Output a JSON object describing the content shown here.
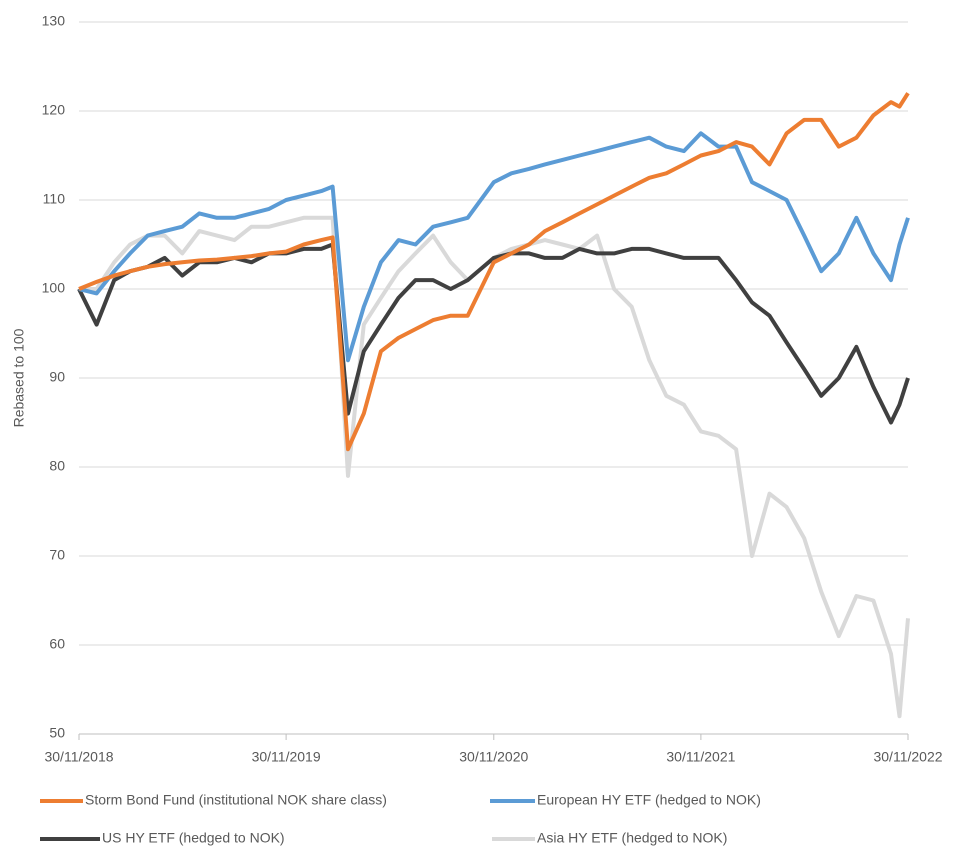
{
  "chart_data": {
    "type": "line",
    "y_label": "Rebased to 100",
    "x": [
      "2018-11-30",
      "2018-12-31",
      "2019-01-31",
      "2019-02-28",
      "2019-03-31",
      "2019-04-30",
      "2019-05-31",
      "2019-06-30",
      "2019-07-31",
      "2019-08-31",
      "2019-09-30",
      "2019-10-31",
      "2019-11-30",
      "2019-12-31",
      "2020-01-31",
      "2020-02-20",
      "2020-03-18",
      "2020-04-15",
      "2020-05-15",
      "2020-06-15",
      "2020-07-15",
      "2020-08-15",
      "2020-09-15",
      "2020-10-15",
      "2020-11-30",
      "2020-12-31",
      "2021-01-31",
      "2021-02-28",
      "2021-03-31",
      "2021-04-30",
      "2021-05-31",
      "2021-06-30",
      "2021-07-31",
      "2021-08-31",
      "2021-09-30",
      "2021-10-31",
      "2021-11-30",
      "2021-12-31",
      "2022-01-31",
      "2022-02-28",
      "2022-03-31",
      "2022-04-30",
      "2022-05-31",
      "2022-06-30",
      "2022-07-31",
      "2022-08-31",
      "2022-09-30",
      "2022-10-31",
      "2022-11-15",
      "2022-11-30"
    ],
    "series": [
      {
        "name": "Storm Bond Fund (institutional NOK share class)",
        "color": "#ed7d31",
        "values": [
          100,
          100.8,
          101.5,
          102,
          102.5,
          102.8,
          103,
          103.2,
          103.3,
          103.5,
          103.7,
          104,
          104.2,
          105,
          105.5,
          105.8,
          82,
          86,
          93,
          94.5,
          95.5,
          96.5,
          97,
          97,
          103,
          104,
          105,
          106.5,
          107.5,
          108.5,
          109.5,
          110.5,
          111.5,
          112.5,
          113,
          114,
          115,
          115.5,
          116.5,
          116,
          114,
          117.5,
          119,
          119,
          116,
          117,
          119.5,
          121,
          120.5,
          122
        ]
      },
      {
        "name": "European HY ETF (hedged to NOK)",
        "color": "#5b9bd5",
        "values": [
          100,
          99.5,
          102,
          104,
          106,
          106.5,
          107,
          108.5,
          108,
          108,
          108.5,
          109,
          110,
          110.5,
          111,
          111.5,
          92,
          98,
          103,
          105.5,
          105,
          107,
          107.5,
          108,
          112,
          113,
          113.5,
          114,
          114.5,
          115,
          115.5,
          116,
          116.5,
          117,
          116,
          115.5,
          117.5,
          116,
          116,
          112,
          111,
          110,
          106,
          102,
          104,
          108,
          104,
          101,
          105,
          108
        ]
      },
      {
        "name": "US HY ETF (hedged to NOK)",
        "color": "#404040",
        "values": [
          100,
          96,
          101,
          102,
          102.5,
          103.5,
          101.5,
          103,
          103,
          103.5,
          103,
          104,
          104,
          104.5,
          104.5,
          105,
          86,
          93,
          96,
          99,
          101,
          101,
          100,
          101,
          103.5,
          104,
          104,
          103.5,
          103.5,
          104.5,
          104,
          104,
          104.5,
          104.5,
          104,
          103.5,
          103.5,
          103.5,
          101,
          98.5,
          97,
          94,
          91,
          88,
          90,
          93.5,
          89,
          85,
          87,
          90
        ]
      },
      {
        "name": "Asia HY ETF (hedged to NOK)",
        "color": "#d9d9d9",
        "values": [
          100,
          100,
          103,
          105,
          106,
          106,
          104,
          106.5,
          106,
          105.5,
          107,
          107,
          107.5,
          108,
          108,
          108,
          79,
          96,
          99,
          102,
          104,
          106,
          103,
          101,
          103.5,
          104.5,
          105,
          105.5,
          105,
          104.5,
          106,
          100,
          98,
          92,
          88,
          87,
          84,
          83.5,
          82,
          70,
          77,
          75.5,
          72,
          66,
          61,
          65.5,
          65,
          59,
          52,
          63
        ]
      }
    ],
    "xlim": [
      "2018-11-30",
      "2022-11-30"
    ],
    "xticks": [
      {
        "value": "2018-11-30",
        "label": "30/11/2018"
      },
      {
        "value": "2019-11-30",
        "label": "30/11/2019"
      },
      {
        "value": "2020-11-30",
        "label": "30/11/2020"
      },
      {
        "value": "2021-11-30",
        "label": "30/11/2021"
      },
      {
        "value": "2022-11-30",
        "label": "30/11/2022"
      }
    ],
    "ylim": [
      50,
      130
    ],
    "yticks": [
      50,
      60,
      70,
      80,
      90,
      100,
      110,
      120,
      130
    ],
    "grid": true,
    "legend": "bottom"
  }
}
